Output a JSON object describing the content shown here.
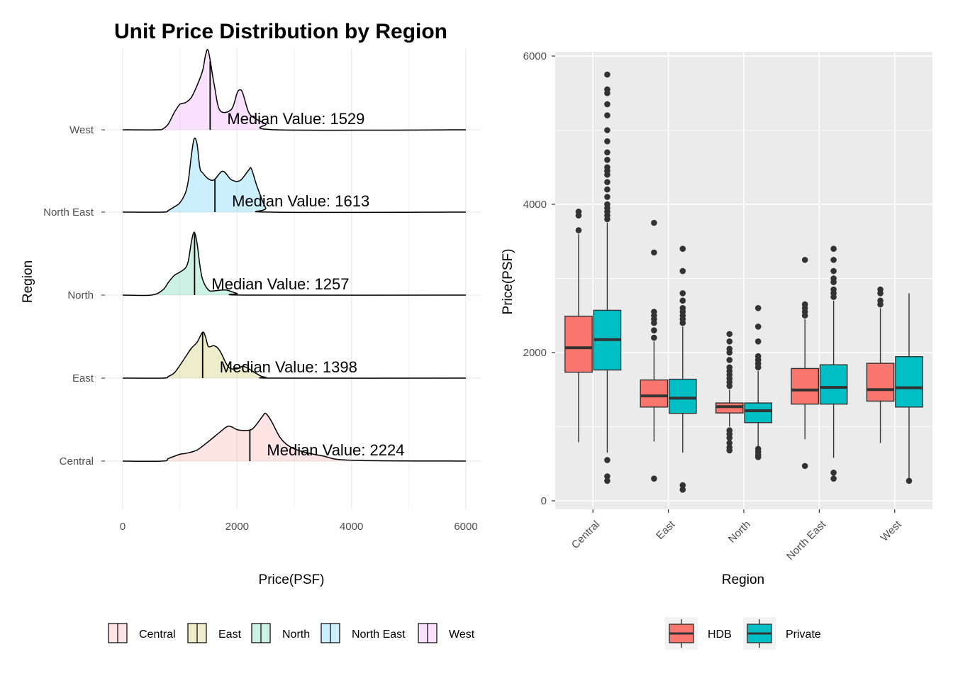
{
  "chart_data": [
    {
      "type": "area",
      "subtype": "ridgeline",
      "title": "Unit Price Distribution by Region",
      "xlabel": "Price(PSF)",
      "ylabel": "Region",
      "xlim": [
        0,
        6000
      ],
      "x_ticks": [
        0,
        2000,
        4000,
        6000
      ],
      "grid": true,
      "legend_position": "bottom",
      "legend": [
        "Central",
        "East",
        "North",
        "North East",
        "West"
      ],
      "median_label_prefix": "Median Value: ",
      "series": [
        {
          "name": "Central",
          "color": "#F8766D",
          "median": 2224,
          "x": [
            0,
            700,
            800,
            1000,
            1100,
            1300,
            1500,
            1700,
            1850,
            2000,
            2100,
            2250,
            2350,
            2450,
            2500,
            2600,
            2750,
            2900,
            3100,
            3500,
            4000,
            6000
          ],
          "density": [
            0,
            0,
            0.03,
            0.08,
            0.09,
            0.13,
            0.23,
            0.34,
            0.41,
            0.37,
            0.36,
            0.37,
            0.44,
            0.53,
            0.56,
            0.47,
            0.28,
            0.18,
            0.12,
            0.06,
            0.01,
            0
          ]
        },
        {
          "name": "East",
          "color": "#A3A500",
          "median": 1398,
          "x": [
            0,
            700,
            800,
            900,
            1000,
            1100,
            1200,
            1300,
            1400,
            1450,
            1500,
            1600,
            1700,
            1850,
            2000,
            2100,
            2200,
            2400,
            2500,
            2700,
            6000
          ],
          "density": [
            0,
            0,
            0.02,
            0.06,
            0.15,
            0.25,
            0.35,
            0.42,
            0.54,
            0.48,
            0.37,
            0.38,
            0.32,
            0.13,
            0.11,
            0.14,
            0.11,
            0.03,
            0.01,
            0,
            0
          ]
        },
        {
          "name": "North",
          "color": "#00BF7D",
          "median": 1257,
          "x": [
            0,
            500,
            700,
            800,
            900,
            1000,
            1100,
            1150,
            1200,
            1250,
            1300,
            1350,
            1400,
            1500,
            1600,
            1800,
            2000,
            2200,
            6000
          ],
          "density": [
            0,
            0,
            0.06,
            0.15,
            0.23,
            0.27,
            0.32,
            0.41,
            0.62,
            0.74,
            0.61,
            0.35,
            0.18,
            0.06,
            0.05,
            0.06,
            0.02,
            0,
            0
          ]
        },
        {
          "name": "North East",
          "color": "#00B0F6",
          "median": 1613,
          "x": [
            0,
            700,
            800,
            900,
            1000,
            1100,
            1150,
            1200,
            1250,
            1300,
            1350,
            1400,
            1500,
            1600,
            1750,
            1900,
            2050,
            2200,
            2250,
            2350,
            2500,
            2600,
            6000
          ],
          "density": [
            0,
            0,
            0.02,
            0.06,
            0.11,
            0.23,
            0.38,
            0.66,
            0.86,
            0.8,
            0.52,
            0.46,
            0.39,
            0.38,
            0.48,
            0.38,
            0.37,
            0.49,
            0.51,
            0.3,
            0.05,
            0,
            0
          ]
        },
        {
          "name": "West",
          "color": "#E76BF3",
          "median": 1529,
          "x": [
            0,
            600,
            700,
            800,
            900,
            1000,
            1100,
            1200,
            1300,
            1400,
            1450,
            1500,
            1600,
            1700,
            1900,
            2000,
            2050,
            2100,
            2200,
            2300,
            2500,
            2700,
            6000
          ],
          "density": [
            0,
            0,
            0.01,
            0.07,
            0.2,
            0.3,
            0.32,
            0.38,
            0.52,
            0.7,
            0.88,
            0.92,
            0.53,
            0.23,
            0.24,
            0.43,
            0.47,
            0.43,
            0.21,
            0.14,
            0.07,
            0,
            0
          ]
        }
      ]
    },
    {
      "type": "box",
      "xlabel": "Region",
      "ylabel": "Price(PSF)",
      "ylim": [
        0,
        6000
      ],
      "y_ticks": [
        0,
        2000,
        4000,
        6000
      ],
      "categories": [
        "Central",
        "East",
        "North",
        "North East",
        "West"
      ],
      "grid": true,
      "legend_position": "bottom",
      "series": [
        {
          "name": "HDB",
          "color": "#F8766D",
          "boxes": [
            {
              "q1": 1735,
              "median": 2065,
              "q3": 2490,
              "whisker_low": 790,
              "whisker_high": 3600,
              "outliers": [
                3650,
                3850,
                3900
              ]
            },
            {
              "q1": 1265,
              "median": 1415,
              "q3": 1630,
              "whisker_low": 800,
              "whisker_high": 2150,
              "outliers": [
                300,
                2200,
                2300,
                2400,
                2450,
                2500,
                2550,
                3350,
                3750
              ]
            },
            {
              "q1": 1185,
              "median": 1270,
              "q3": 1320,
              "whisker_low": 1000,
              "whisker_high": 1500,
              "outliers": [
                680,
                720,
                780,
                850,
                900,
                950,
                1550,
                1600,
                1650,
                1700,
                1750,
                1800,
                1900,
                2000,
                2050,
                2150,
                2250
              ]
            },
            {
              "q1": 1305,
              "median": 1495,
              "q3": 1785,
              "whisker_low": 830,
              "whisker_high": 2450,
              "outliers": [
                470,
                2500,
                2550,
                2600,
                2650,
                3250
              ]
            },
            {
              "q1": 1345,
              "median": 1500,
              "q3": 1855,
              "whisker_low": 780,
              "whisker_high": 2600,
              "outliers": [
                2650,
                2700,
                2800,
                2850
              ]
            }
          ]
        },
        {
          "name": "Private",
          "color": "#00BFC4",
          "boxes": [
            {
              "q1": 1765,
              "median": 2175,
              "q3": 2570,
              "whisker_low": 650,
              "whisker_high": 3750,
              "outliers": [
                270,
                330,
                550,
                3800,
                3850,
                3900,
                3950,
                4000,
                4100,
                4200,
                4300,
                4400,
                4450,
                4500,
                4600,
                4700,
                4850,
                5000,
                5200,
                5350,
                5500,
                5550,
                5750
              ]
            },
            {
              "q1": 1180,
              "median": 1385,
              "q3": 1640,
              "whisker_low": 650,
              "whisker_high": 2350,
              "outliers": [
                150,
                210,
                2400,
                2450,
                2500,
                2550,
                2600,
                2700,
                2800,
                3100,
                3400
              ]
            },
            {
              "q1": 1055,
              "median": 1215,
              "q3": 1320,
              "whisker_low": 700,
              "whisker_high": 1750,
              "outliers": [
                590,
                620,
                660,
                700,
                1800,
                1850,
                1900,
                1950,
                2150,
                2350,
                2600
              ]
            },
            {
              "q1": 1305,
              "median": 1530,
              "q3": 1835,
              "whisker_low": 580,
              "whisker_high": 2700,
              "outliers": [
                300,
                380,
                2750,
                2800,
                2850,
                2950,
                3000,
                3100,
                3250,
                3400
              ]
            },
            {
              "q1": 1265,
              "median": 1525,
              "q3": 1945,
              "whisker_low": 280,
              "whisker_high": 2800,
              "outliers": [
                270
              ]
            }
          ]
        }
      ]
    }
  ]
}
